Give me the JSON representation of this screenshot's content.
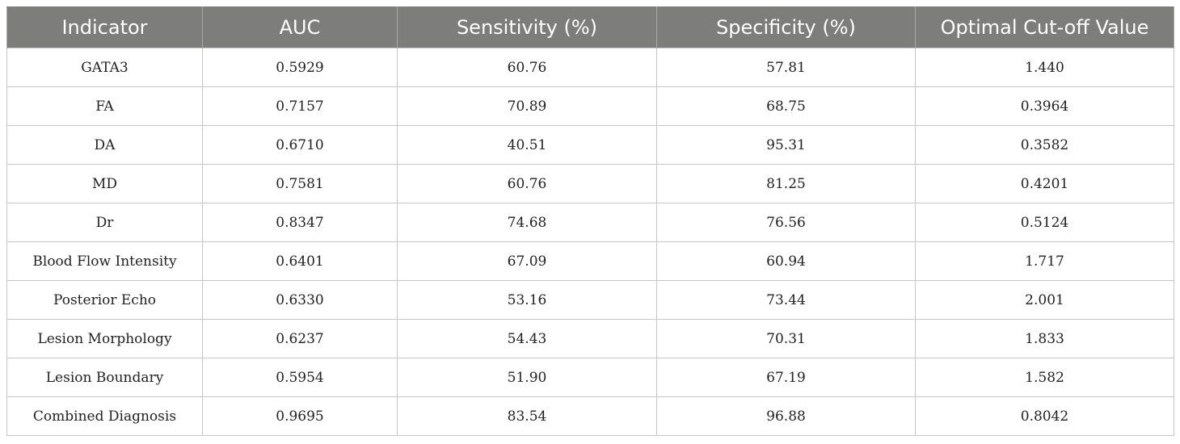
{
  "table": {
    "headers": [
      "Indicator",
      "AUC",
      "Sensitivity (%)",
      "Specificity (%)",
      "Optimal Cut-off Value"
    ],
    "rows": [
      [
        "GATA3",
        "0.5929",
        "60.76",
        "57.81",
        "1.440"
      ],
      [
        "FA",
        "0.7157",
        "70.89",
        "68.75",
        "0.3964"
      ],
      [
        "DA",
        "0.6710",
        "40.51",
        "95.31",
        "0.3582"
      ],
      [
        "MD",
        "0.7581",
        "60.76",
        "81.25",
        "0.4201"
      ],
      [
        "Dr",
        "0.8347",
        "74.68",
        "76.56",
        "0.5124"
      ],
      [
        "Blood Flow Intensity",
        "0.6401",
        "67.09",
        "60.94",
        "1.717"
      ],
      [
        "Posterior Echo",
        "0.6330",
        "53.16",
        "73.44",
        "2.001"
      ],
      [
        "Lesion Morphology",
        "0.6237",
        "54.43",
        "70.31",
        "1.833"
      ],
      [
        "Lesion Boundary",
        "0.5954",
        "51.90",
        "67.19",
        "1.582"
      ],
      [
        "Combined Diagnosis",
        "0.9695",
        "83.54",
        "96.88",
        "0.8042"
      ]
    ]
  }
}
